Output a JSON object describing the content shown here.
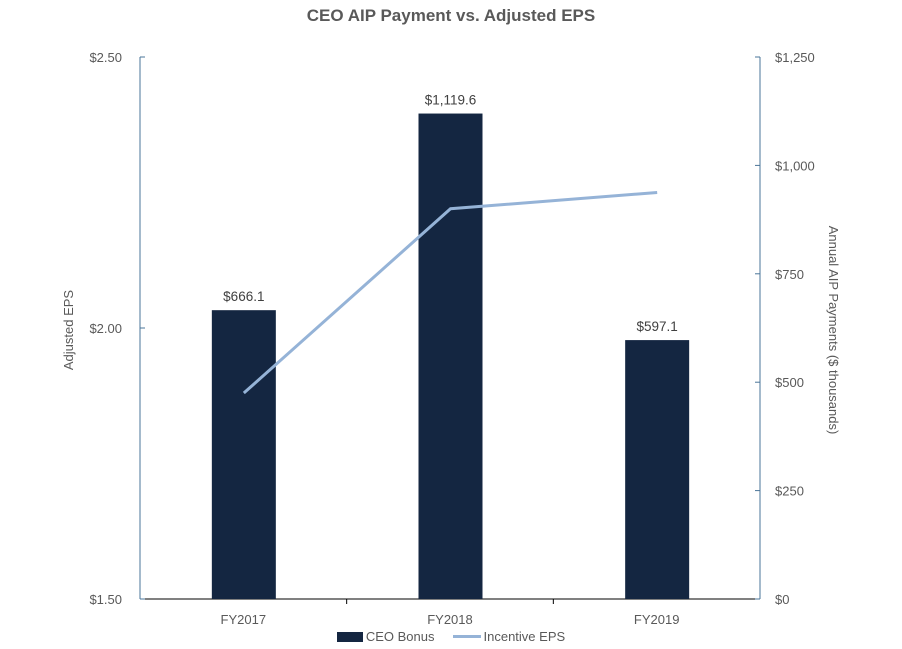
{
  "chart_data": {
    "type": "bar+line",
    "title": "CEO AIP Payment vs. Adjusted EPS",
    "categories": [
      "FY2017",
      "FY2018",
      "FY2019"
    ],
    "series": [
      {
        "name": "CEO Bonus",
        "type": "bar",
        "axis": "right",
        "color": "#142641",
        "values": [
          666.1,
          1119.6,
          597.1
        ],
        "labels": [
          "$666.1",
          "$1,119.6",
          "$597.1"
        ]
      },
      {
        "name": "Incentive EPS",
        "type": "line",
        "axis": "left",
        "color": "#95b3d7",
        "values": [
          1.88,
          2.22,
          2.25
        ]
      }
    ],
    "left_axis": {
      "label": "Adjusted EPS",
      "ylim": [
        1.5,
        2.5
      ],
      "ticks": [
        "$1.50",
        "$2.00",
        "$2.50"
      ]
    },
    "right_axis": {
      "label": "Annual AIP Payments  ($ thousands)",
      "ylim": [
        0,
        1250
      ],
      "ticks": [
        "$0",
        "$250",
        "$500",
        "$750",
        "$1,000",
        "$1,250"
      ]
    },
    "xlabel": "",
    "grid": false,
    "legend_position": "bottom"
  }
}
